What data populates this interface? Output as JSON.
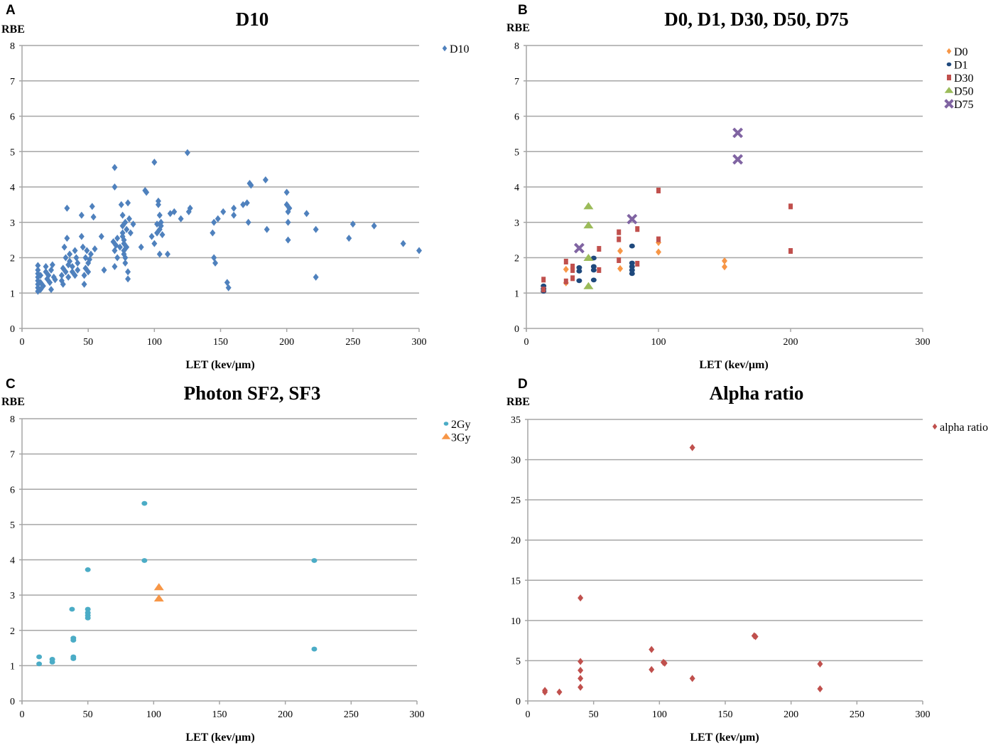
{
  "chart_data": [
    {
      "panel": "A",
      "type": "scatter",
      "title": "D10",
      "ylabel": "RBE",
      "xlabel": "LET (kev/µm)",
      "xlim": [
        0,
        300
      ],
      "ylim": [
        0,
        8
      ],
      "xticks": [
        "0",
        "50",
        "100",
        "150",
        "200",
        "250",
        "300"
      ],
      "yticks": [
        "0",
        "1",
        "2",
        "3",
        "4",
        "5",
        "6",
        "7",
        "8"
      ],
      "grid": "horizontal",
      "legend_position": "top-right",
      "series": [
        {
          "name": "D10",
          "marker": "diamond",
          "color": "#4F81BD",
          "points": [
            [
              12,
              1.05
            ],
            [
              12,
              1.15
            ],
            [
              12,
              1.25
            ],
            [
              12,
              1.35
            ],
            [
              12,
              1.45
            ],
            [
              12,
              1.55
            ],
            [
              12,
              1.65
            ],
            [
              12,
              1.78
            ],
            [
              14,
              1.1
            ],
            [
              14,
              1.3
            ],
            [
              14,
              1.5
            ],
            [
              16,
              1.2
            ],
            [
              18,
              1.6
            ],
            [
              18,
              1.75
            ],
            [
              19,
              1.4
            ],
            [
              20,
              1.5
            ],
            [
              21,
              1.3
            ],
            [
              22,
              1.65
            ],
            [
              22,
              1.1
            ],
            [
              23,
              1.8
            ],
            [
              24,
              1.45
            ],
            [
              25,
              1.38
            ],
            [
              30,
              1.35
            ],
            [
              30,
              1.5
            ],
            [
              31,
              1.7
            ],
            [
              31,
              1.25
            ],
            [
              32,
              2.3
            ],
            [
              33,
              2.0
            ],
            [
              33,
              1.6
            ],
            [
              34,
              3.4
            ],
            [
              34,
              2.55
            ],
            [
              35,
              1.45
            ],
            [
              35,
              1.8
            ],
            [
              36,
              2.1
            ],
            [
              36,
              1.9
            ],
            [
              38,
              1.6
            ],
            [
              38,
              1.75
            ],
            [
              40,
              2.2
            ],
            [
              40,
              1.5
            ],
            [
              41,
              2.0
            ],
            [
              42,
              1.85
            ],
            [
              42,
              1.65
            ],
            [
              45,
              3.2
            ],
            [
              45,
              2.6
            ],
            [
              46,
              2.3
            ],
            [
              47,
              1.25
            ],
            [
              47,
              1.5
            ],
            [
              48,
              2.0
            ],
            [
              48,
              1.7
            ],
            [
              49,
              2.2
            ],
            [
              50,
              1.85
            ],
            [
              50,
              1.6
            ],
            [
              51,
              1.95
            ],
            [
              52,
              2.1
            ],
            [
              53,
              3.45
            ],
            [
              54,
              3.15
            ],
            [
              55,
              2.25
            ],
            [
              60,
              2.6
            ],
            [
              62,
              1.65
            ],
            [
              69,
              2.45
            ],
            [
              70,
              4.55
            ],
            [
              70,
              4.0
            ],
            [
              70,
              2.2
            ],
            [
              70,
              1.75
            ],
            [
              71,
              2.35
            ],
            [
              72,
              2.55
            ],
            [
              72,
              2.0
            ],
            [
              74,
              2.3
            ],
            [
              75,
              3.5
            ],
            [
              76,
              3.2
            ],
            [
              76,
              2.9
            ],
            [
              76,
              2.7
            ],
            [
              76,
              2.6
            ],
            [
              77,
              2.5
            ],
            [
              77,
              2.4
            ],
            [
              77,
              2.2
            ],
            [
              77,
              2.1
            ],
            [
              78,
              2.0
            ],
            [
              78,
              1.85
            ],
            [
              78,
              3.0
            ],
            [
              79,
              2.8
            ],
            [
              79,
              2.3
            ],
            [
              80,
              3.55
            ],
            [
              80,
              1.6
            ],
            [
              80,
              1.4
            ],
            [
              81,
              3.1
            ],
            [
              82,
              2.7
            ],
            [
              84,
              2.95
            ],
            [
              90,
              2.3
            ],
            [
              93,
              3.9
            ],
            [
              94,
              3.85
            ],
            [
              98,
              2.6
            ],
            [
              100,
              4.7
            ],
            [
              100,
              2.4
            ],
            [
              102,
              2.95
            ],
            [
              102,
              2.7
            ],
            [
              103,
              3.5
            ],
            [
              103,
              3.6
            ],
            [
              104,
              3.2
            ],
            [
              104,
              2.8
            ],
            [
              104,
              2.1
            ],
            [
              105,
              3.0
            ],
            [
              105,
              2.9
            ],
            [
              106,
              2.65
            ],
            [
              110,
              2.1
            ],
            [
              112,
              3.25
            ],
            [
              115,
              3.3
            ],
            [
              120,
              3.1
            ],
            [
              125,
              4.97
            ],
            [
              126,
              3.3
            ],
            [
              127,
              3.4
            ],
            [
              144,
              2.7
            ],
            [
              145,
              3.0
            ],
            [
              145,
              2.0
            ],
            [
              146,
              1.85
            ],
            [
              148,
              3.1
            ],
            [
              152,
              3.3
            ],
            [
              155,
              1.3
            ],
            [
              156,
              1.15
            ],
            [
              160,
              3.2
            ],
            [
              160,
              3.4
            ],
            [
              167,
              3.5
            ],
            [
              170,
              3.55
            ],
            [
              171,
              3.0
            ],
            [
              172,
              4.1
            ],
            [
              173,
              4.05
            ],
            [
              184,
              4.2
            ],
            [
              185,
              2.8
            ],
            [
              200,
              3.85
            ],
            [
              200,
              3.5
            ],
            [
              201,
              3.3
            ],
            [
              201,
              3.0
            ],
            [
              201,
              2.5
            ],
            [
              202,
              3.4
            ],
            [
              215,
              3.25
            ],
            [
              222,
              2.8
            ],
            [
              222,
              1.45
            ],
            [
              247,
              2.55
            ],
            [
              250,
              2.95
            ],
            [
              266,
              2.9
            ],
            [
              288,
              2.4
            ],
            [
              300,
              2.2
            ]
          ]
        }
      ]
    },
    {
      "panel": "B",
      "type": "scatter",
      "title": "D0, D1, D30, D50, D75",
      "ylabel": "RBE",
      "xlabel": "LET (kev/µm)",
      "xlim": [
        0,
        300
      ],
      "ylim": [
        0,
        8
      ],
      "xticks": [
        "0",
        "100",
        "200",
        "300"
      ],
      "yticks": [
        "0",
        "1",
        "2",
        "3",
        "4",
        "5",
        "6",
        "7",
        "8"
      ],
      "grid": "horizontal",
      "legend_position": "top-right",
      "series": [
        {
          "name": "D0",
          "marker": "diamond",
          "color": "#F79646",
          "points": [
            [
              30,
              1.67
            ],
            [
              30,
              1.29
            ],
            [
              71,
              2.19
            ],
            [
              71,
              1.69
            ],
            [
              100,
              2.43
            ],
            [
              100,
              2.16
            ],
            [
              150,
              1.91
            ],
            [
              150,
              1.74
            ]
          ]
        },
        {
          "name": "D1",
          "marker": "circle",
          "color": "#1F497D",
          "points": [
            [
              13,
              1.2
            ],
            [
              13,
              1.12
            ],
            [
              13,
              1.05
            ],
            [
              40,
              1.72
            ],
            [
              40,
              1.62
            ],
            [
              40,
              1.35
            ],
            [
              51,
              1.99
            ],
            [
              51,
              1.75
            ],
            [
              51,
              1.65
            ],
            [
              51,
              1.37
            ],
            [
              80,
              2.33
            ],
            [
              80,
              1.85
            ],
            [
              80,
              1.75
            ],
            [
              80,
              1.65
            ],
            [
              80,
              1.55
            ]
          ]
        },
        {
          "name": "D30",
          "marker": "square",
          "color": "#C0504D",
          "points": [
            [
              13,
              1.38
            ],
            [
              13,
              1.1
            ],
            [
              30,
              1.89
            ],
            [
              30,
              1.33
            ],
            [
              35,
              1.75
            ],
            [
              35,
              1.65
            ],
            [
              35,
              1.42
            ],
            [
              55,
              2.25
            ],
            [
              55,
              1.65
            ],
            [
              70,
              2.72
            ],
            [
              70,
              2.52
            ],
            [
              70,
              1.93
            ],
            [
              84,
              2.81
            ],
            [
              84,
              1.83
            ],
            [
              100,
              3.9
            ],
            [
              100,
              2.52
            ],
            [
              200,
              3.45
            ],
            [
              200,
              2.19
            ]
          ]
        },
        {
          "name": "D50",
          "marker": "triangle",
          "color": "#9BBB59",
          "points": [
            [
              47,
              3.45
            ],
            [
              47,
              2.91
            ],
            [
              47,
              1.99
            ],
            [
              47,
              1.19
            ]
          ]
        },
        {
          "name": "D75",
          "marker": "x",
          "color": "#8064A2",
          "points": [
            [
              160,
              5.53
            ],
            [
              160,
              4.78
            ],
            [
              80,
              3.09
            ],
            [
              40,
              2.27
            ]
          ]
        }
      ]
    },
    {
      "panel": "C",
      "type": "scatter",
      "title": "Photon SF2, SF3",
      "ylabel": "RBE",
      "xlabel": "LET (kev/µm)",
      "xlim": [
        0,
        300
      ],
      "ylim": [
        0,
        8
      ],
      "xticks": [
        "0",
        "50",
        "100",
        "150",
        "200",
        "250",
        "300"
      ],
      "yticks": [
        "0",
        "1",
        "2",
        "3",
        "4",
        "5",
        "6",
        "7",
        "8"
      ],
      "grid": "horizontal",
      "legend_position": "top-right",
      "series": [
        {
          "name": "2Gy",
          "marker": "circle",
          "color": "#4BACC6",
          "points": [
            [
              13,
              1.25
            ],
            [
              13,
              1.05
            ],
            [
              23,
              1.18
            ],
            [
              23,
              1.1
            ],
            [
              38,
              2.6
            ],
            [
              39,
              1.78
            ],
            [
              39,
              1.72
            ],
            [
              39,
              1.25
            ],
            [
              39,
              1.2
            ],
            [
              50,
              3.72
            ],
            [
              50,
              2.6
            ],
            [
              50,
              2.5
            ],
            [
              50,
              2.42
            ],
            [
              50,
              2.35
            ],
            [
              93,
              5.6
            ],
            [
              93,
              3.98
            ],
            [
              222,
              3.98
            ],
            [
              222,
              1.47
            ]
          ]
        },
        {
          "name": "3Gy",
          "marker": "triangle",
          "color": "#F79646",
          "points": [
            [
              104,
              3.22
            ],
            [
              104,
              2.9
            ]
          ]
        }
      ]
    },
    {
      "panel": "D",
      "type": "scatter",
      "title": "Alpha ratio",
      "ylabel": "RBE",
      "xlabel": "LET (kev/µm)",
      "xlim": [
        0,
        300
      ],
      "ylim": [
        0,
        35
      ],
      "xticks": [
        "0",
        "50",
        "100",
        "150",
        "200",
        "250",
        "300"
      ],
      "yticks": [
        "0",
        "5",
        "10",
        "15",
        "20",
        "25",
        "30",
        "35"
      ],
      "grid": "horizontal",
      "legend_position": "top-right",
      "series": [
        {
          "name": "alpha ratio",
          "marker": "diamond",
          "color": "#C0504D",
          "points": [
            [
              13,
              1.3
            ],
            [
              13,
              1.1
            ],
            [
              24,
              1.1
            ],
            [
              40,
              12.8
            ],
            [
              40,
              4.9
            ],
            [
              40,
              3.8
            ],
            [
              40,
              2.8
            ],
            [
              40,
              1.7
            ],
            [
              94,
              6.4
            ],
            [
              94,
              3.9
            ],
            [
              103,
              4.8
            ],
            [
              104,
              4.7
            ],
            [
              125,
              31.5
            ],
            [
              125,
              2.8
            ],
            [
              172,
              8.1
            ],
            [
              173,
              8.0
            ],
            [
              222,
              4.6
            ],
            [
              222,
              1.5
            ]
          ]
        }
      ]
    }
  ]
}
